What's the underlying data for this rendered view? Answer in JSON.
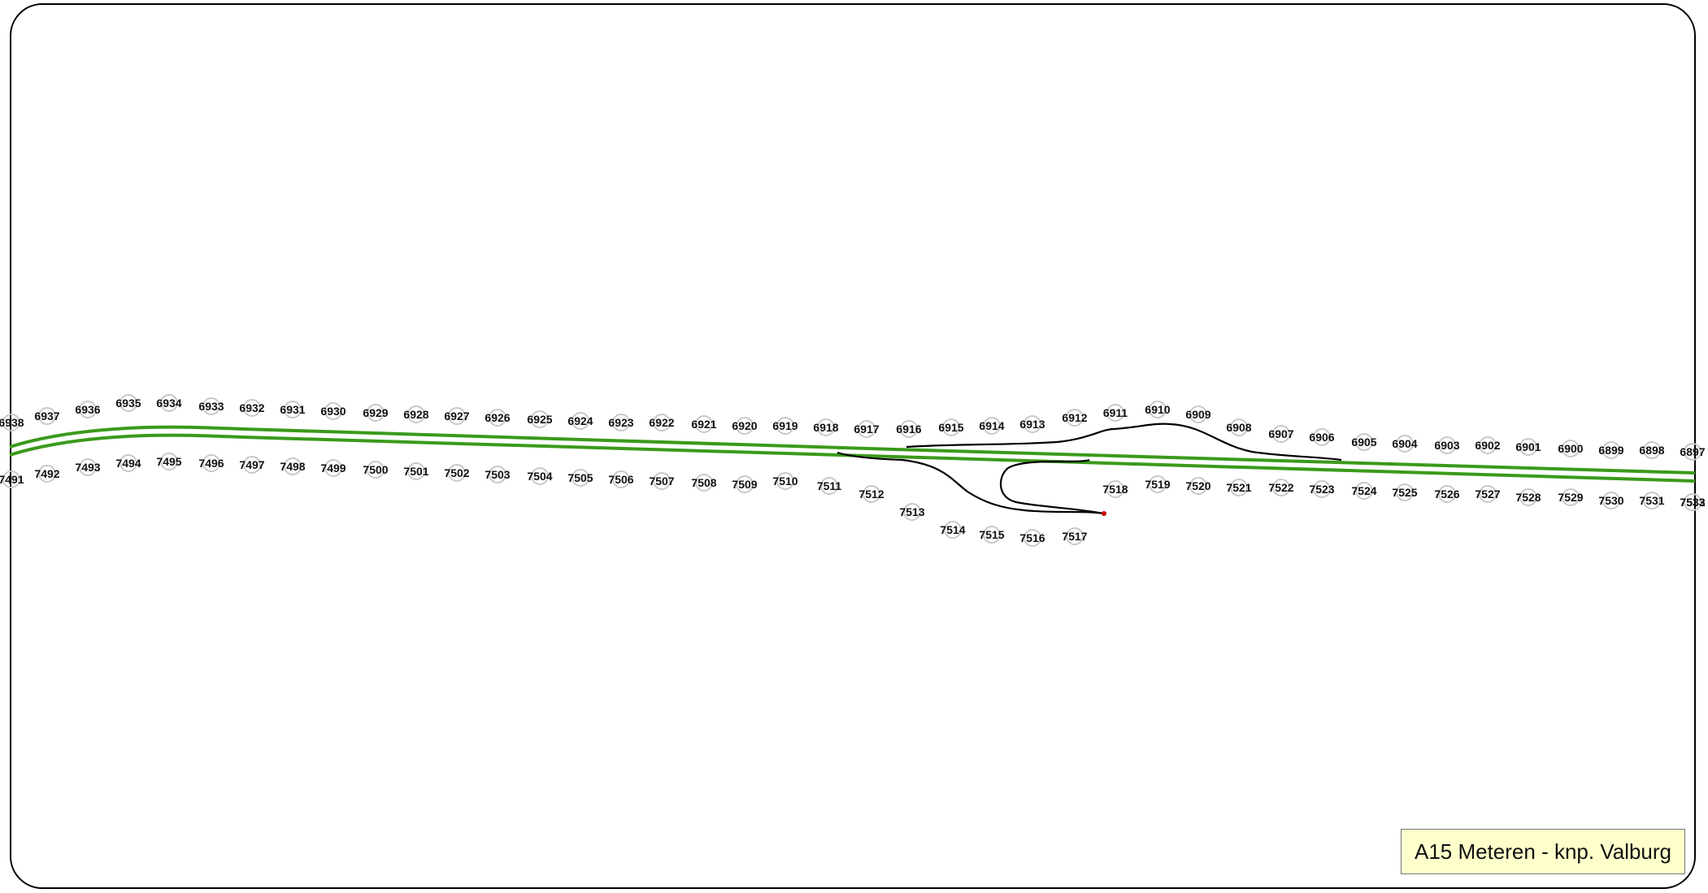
{
  "map": {
    "caption": "A15 Meteren - knp. Valburg",
    "road_color": "#3a9a1a",
    "ramp_color": "#000000",
    "marker_color": "#cc0000",
    "north_row": [
      "6938",
      "6937",
      "6936",
      "6935",
      "6934",
      "6933",
      "6932",
      "6931",
      "6930",
      "6929",
      "6928",
      "6927",
      "6926",
      "6925",
      "6924",
      "6923",
      "6922",
      "6921",
      "6920",
      "6919",
      "6918",
      "6917",
      "6916",
      "6915",
      "6914",
      "6913",
      "6912",
      "6911",
      "6910",
      "6909",
      "6908",
      "6907",
      "6906",
      "6905",
      "6904",
      "6903",
      "6902",
      "6901",
      "6900",
      "6899",
      "6898",
      "6897"
    ],
    "south_row": [
      "7491",
      "7492",
      "7493",
      "7494",
      "7495",
      "7496",
      "7497",
      "7498",
      "7499",
      "7500",
      "7501",
      "7502",
      "7503",
      "7504",
      "7505",
      "7506",
      "7507",
      "7508",
      "7509",
      "7510",
      "7511",
      "7512",
      "7513",
      "7514",
      "7515",
      "7516",
      "7517",
      "7518",
      "7519",
      "7520",
      "7521",
      "7522",
      "7523",
      "7524",
      "7525",
      "7526",
      "7527",
      "7528",
      "7529",
      "7530",
      "7531",
      "7532",
      "7533"
    ]
  }
}
